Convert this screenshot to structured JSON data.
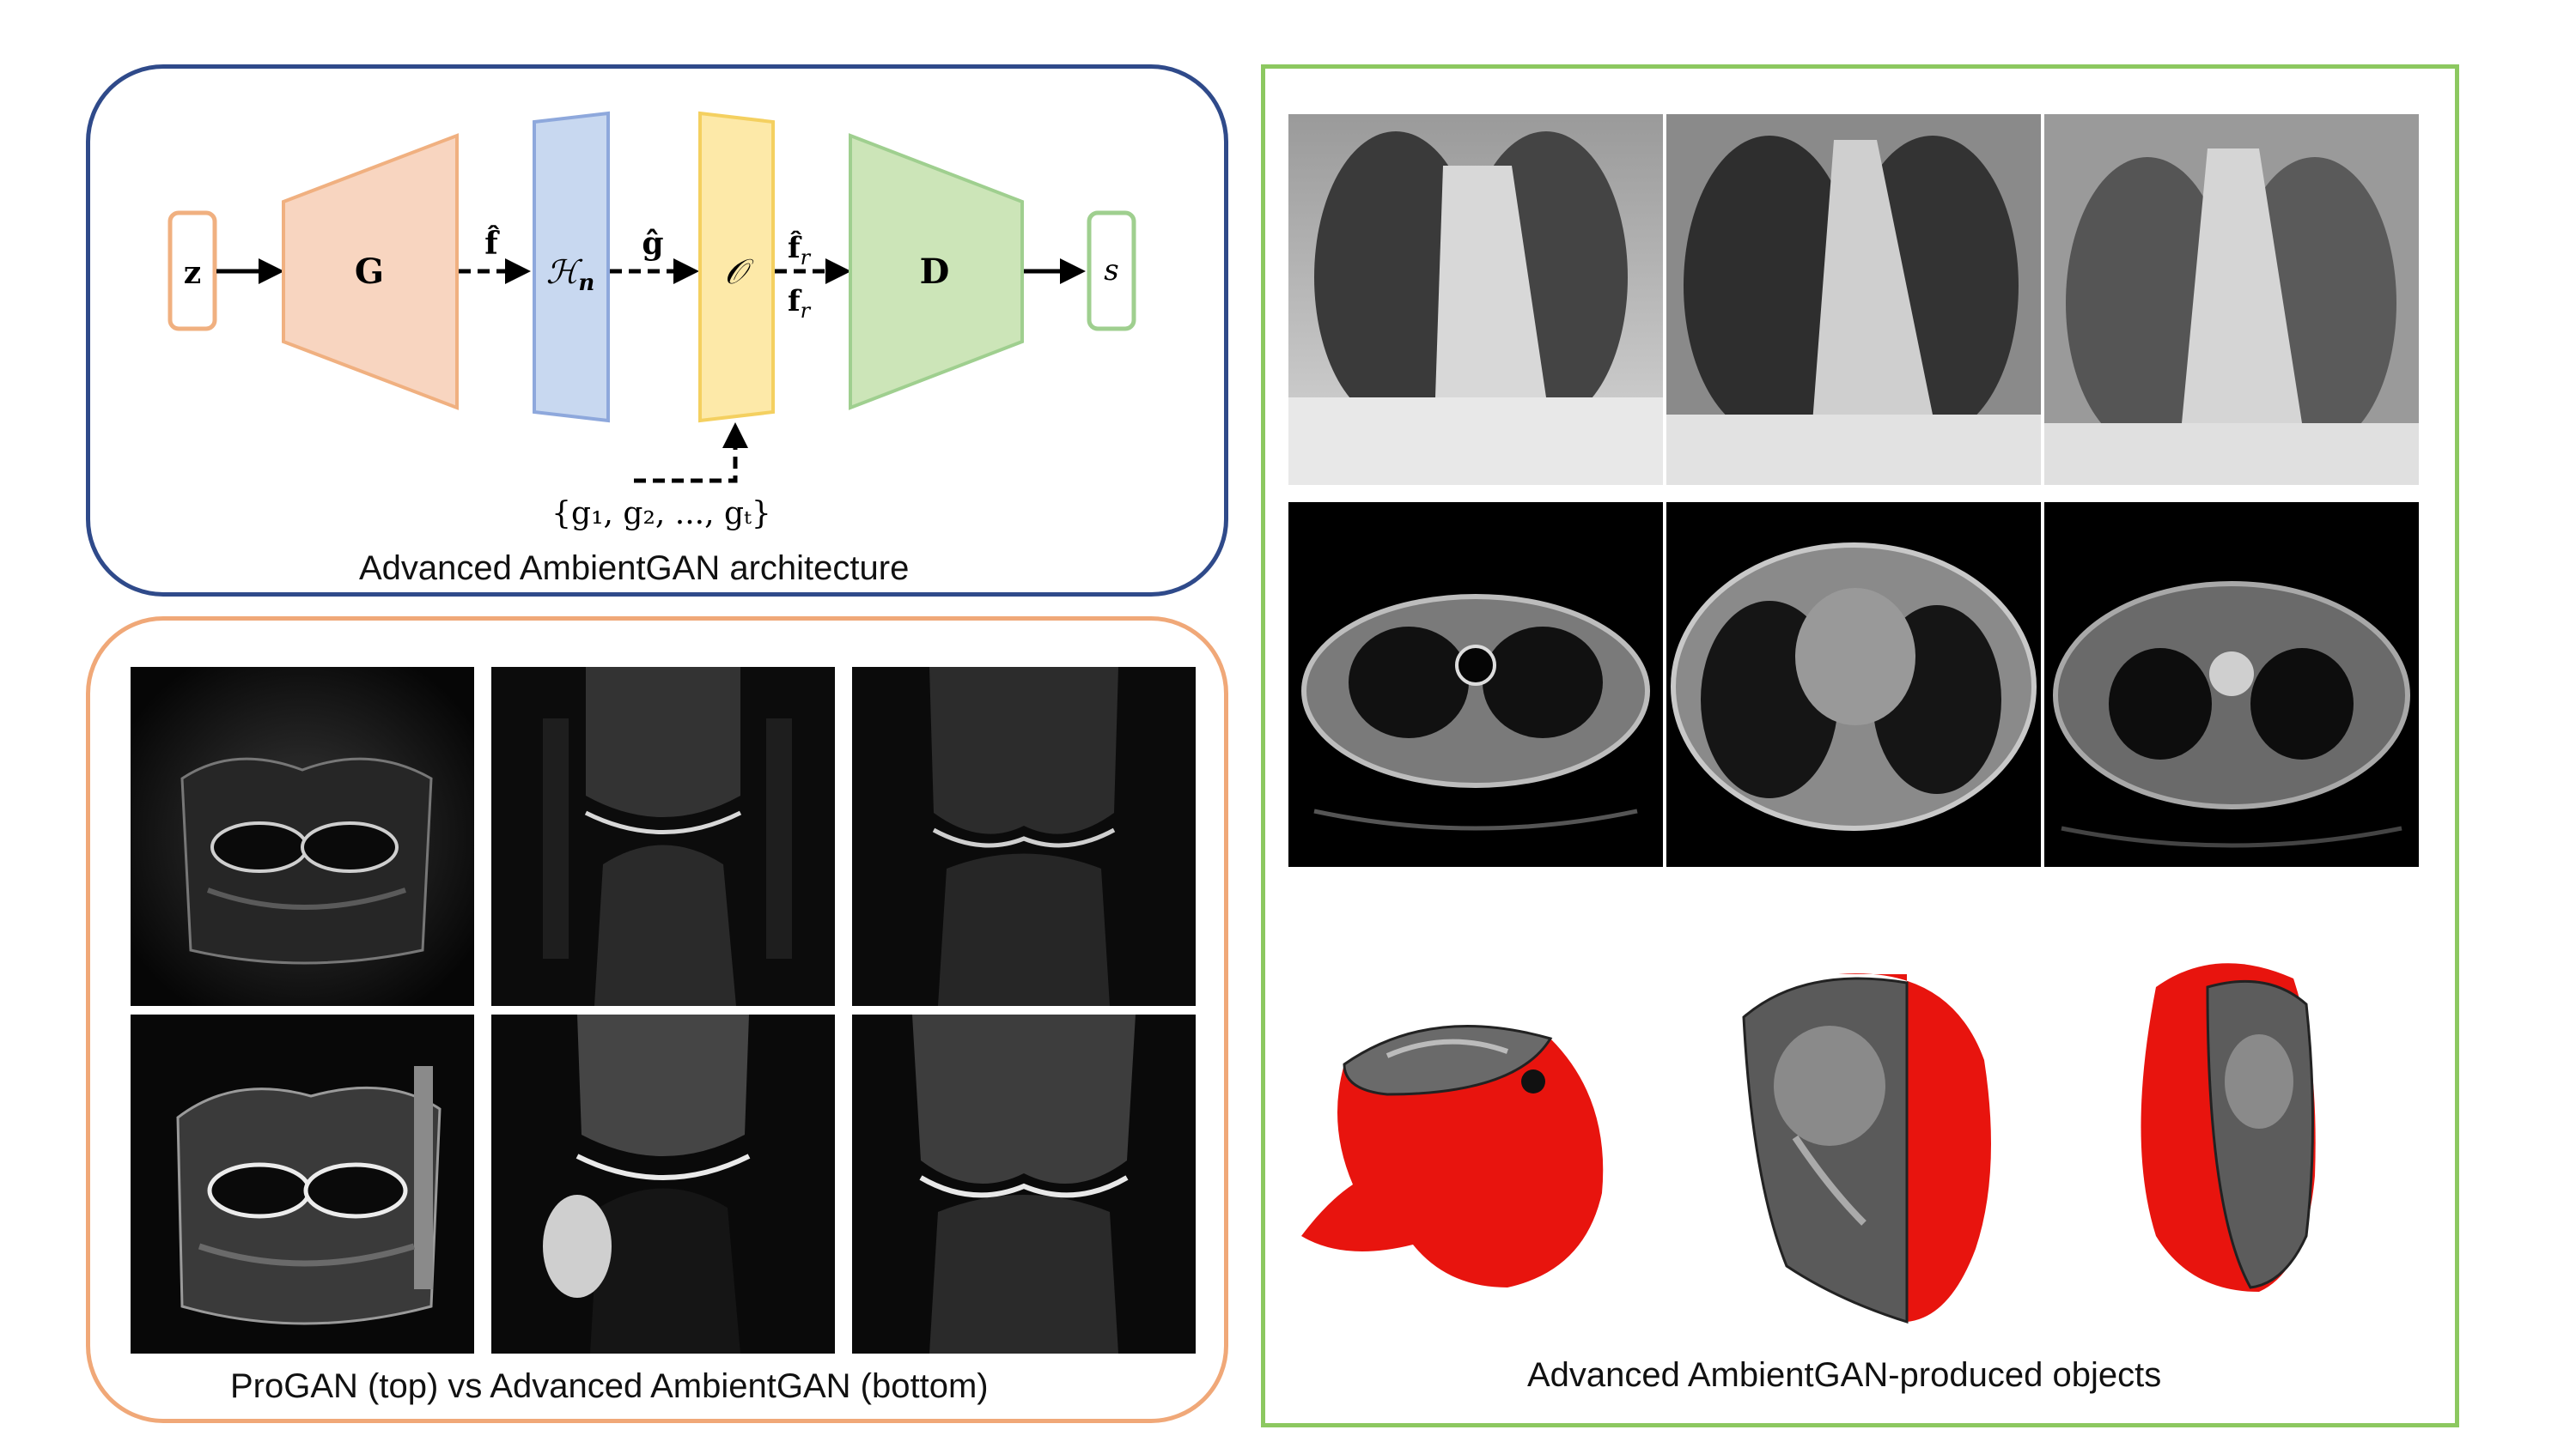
{
  "architecture": {
    "caption": "Advanced AmbientGAN architecture",
    "nodes": {
      "z": "z",
      "generator": "G",
      "h_operator_base": "ℋ",
      "h_operator_sub": "n",
      "observation": "𝒪",
      "discriminator": "D",
      "output": "s"
    },
    "edges": {
      "f_hat": "f̂",
      "g_hat": "ĝ",
      "f_r_hat": "f̂",
      "f_r": "f",
      "sub_r": "r"
    },
    "input_set": "{g₁, g₂, ..., gₜ}",
    "colors": {
      "z_border": "#f0b080",
      "generator_fill": "#f8d5c0",
      "h_fill": "#c8d8f0",
      "o_fill": "#fde9a8",
      "d_fill": "#cce5b8",
      "s_border": "#9fcf8f"
    }
  },
  "mri_comparison": {
    "caption": "ProGAN (top) vs Advanced AmbientGAN (bottom)",
    "rows": [
      "ProGAN",
      "Advanced AmbientGAN"
    ],
    "columns": 3
  },
  "objects": {
    "caption": "Advanced AmbientGAN-produced objects",
    "rows": [
      "chest-xray",
      "chest-ct",
      "brain-mri-3d"
    ],
    "colors": {
      "head_surface": "#e8140e"
    }
  }
}
